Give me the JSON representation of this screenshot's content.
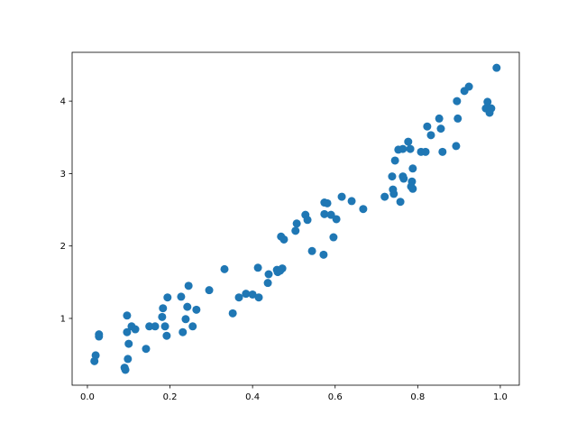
{
  "chart_data": {
    "type": "scatter",
    "title": "",
    "xlabel": "",
    "ylabel": "",
    "xlim": [
      -0.037,
      1.046
    ],
    "ylim": [
      0.078,
      4.674
    ],
    "xticks": [
      "0.0",
      "0.2",
      "0.4",
      "0.6",
      "0.8",
      "1.0"
    ],
    "yticks": [
      "1",
      "2",
      "3",
      "4"
    ],
    "grid": false,
    "color": "#1f77b4",
    "points": [
      [
        0.017,
        0.41
      ],
      [
        0.02,
        0.49
      ],
      [
        0.028,
        0.75
      ],
      [
        0.028,
        0.78
      ],
      [
        0.09,
        0.32
      ],
      [
        0.092,
        0.29
      ],
      [
        0.098,
        0.44
      ],
      [
        0.1,
        0.65
      ],
      [
        0.096,
        0.81
      ],
      [
        0.096,
        1.04
      ],
      [
        0.107,
        0.89
      ],
      [
        0.116,
        0.85
      ],
      [
        0.142,
        0.58
      ],
      [
        0.15,
        0.89
      ],
      [
        0.164,
        0.89
      ],
      [
        0.192,
        0.76
      ],
      [
        0.188,
        0.89
      ],
      [
        0.181,
        1.02
      ],
      [
        0.183,
        1.14
      ],
      [
        0.194,
        1.29
      ],
      [
        0.227,
        1.3
      ],
      [
        0.231,
        0.81
      ],
      [
        0.238,
        0.99
      ],
      [
        0.242,
        1.16
      ],
      [
        0.245,
        1.45
      ],
      [
        0.255,
        0.89
      ],
      [
        0.264,
        1.12
      ],
      [
        0.295,
        1.39
      ],
      [
        0.332,
        1.68
      ],
      [
        0.352,
        1.07
      ],
      [
        0.367,
        1.29
      ],
      [
        0.384,
        1.34
      ],
      [
        0.4,
        1.33
      ],
      [
        0.415,
        1.29
      ],
      [
        0.413,
        1.7
      ],
      [
        0.437,
        1.49
      ],
      [
        0.439,
        1.61
      ],
      [
        0.459,
        1.67
      ],
      [
        0.461,
        1.64
      ],
      [
        0.467,
        1.66
      ],
      [
        0.472,
        1.69
      ],
      [
        0.469,
        2.13
      ],
      [
        0.476,
        2.09
      ],
      [
        0.504,
        2.21
      ],
      [
        0.507,
        2.31
      ],
      [
        0.528,
        2.43
      ],
      [
        0.533,
        2.36
      ],
      [
        0.544,
        1.93
      ],
      [
        0.572,
        1.88
      ],
      [
        0.574,
        2.6
      ],
      [
        0.581,
        2.59
      ],
      [
        0.574,
        2.44
      ],
      [
        0.59,
        2.43
      ],
      [
        0.596,
        2.12
      ],
      [
        0.603,
        2.37
      ],
      [
        0.616,
        2.68
      ],
      [
        0.64,
        2.62
      ],
      [
        0.668,
        2.51
      ],
      [
        0.72,
        2.68
      ],
      [
        0.738,
        2.96
      ],
      [
        0.74,
        2.78
      ],
      [
        0.742,
        2.72
      ],
      [
        0.745,
        3.18
      ],
      [
        0.753,
        3.33
      ],
      [
        0.758,
        2.61
      ],
      [
        0.764,
        3.34
      ],
      [
        0.782,
        3.34
      ],
      [
        0.777,
        3.44
      ],
      [
        0.764,
        2.96
      ],
      [
        0.766,
        2.93
      ],
      [
        0.788,
        3.07
      ],
      [
        0.786,
        2.89
      ],
      [
        0.788,
        2.79
      ],
      [
        0.784,
        2.82
      ],
      [
        0.808,
        3.3
      ],
      [
        0.819,
        3.3
      ],
      [
        0.823,
        3.65
      ],
      [
        0.832,
        3.53
      ],
      [
        0.852,
        3.76
      ],
      [
        0.856,
        3.62
      ],
      [
        0.86,
        3.3
      ],
      [
        0.893,
        3.38
      ],
      [
        0.897,
        3.76
      ],
      [
        0.895,
        4.0
      ],
      [
        0.913,
        4.14
      ],
      [
        0.924,
        4.2
      ],
      [
        0.965,
        3.9
      ],
      [
        0.969,
        3.99
      ],
      [
        0.974,
        3.88
      ],
      [
        0.978,
        3.9
      ],
      [
        0.974,
        3.84
      ],
      [
        0.991,
        4.46
      ]
    ]
  }
}
